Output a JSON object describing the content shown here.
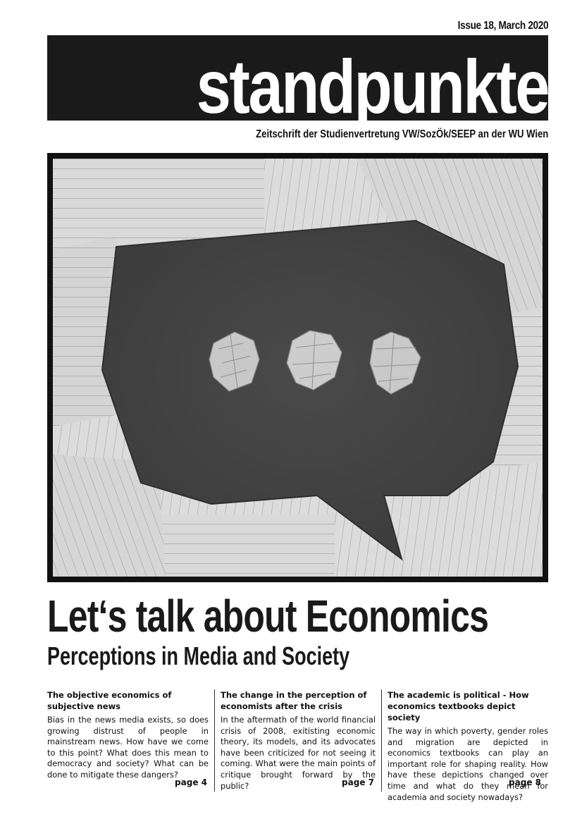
{
  "header": {
    "issue": "Issue 18, March 2020",
    "title": "standpunkte",
    "subtitle": "Zeitschrift der Studienvertretung VW/SozÖk/SEEP an der WU Wien"
  },
  "cover": {
    "description_icon": "speech-bubble-with-crumpled-paper-balls"
  },
  "headline": {
    "title": "Let‘s talk about Economics",
    "subtitle": "Perceptions in Media and Society"
  },
  "articles": [
    {
      "title": "The objective economics of subjective news",
      "teaser": "Bias in the news media exists, so does growing distrust of people in mainstream news. How have we come to this point? What does this mean to democracy and society? What can be done to mitigate these dangers?",
      "page": "page 4"
    },
    {
      "title": "The change in the perception of economists after the crisis",
      "teaser": "In the aftermath of the world financial crisis of 2008, exitisting economic theory, its models, and its advocates have been criticized for not seeing it coming. What were the main points of critique brought forward by the public?",
      "page": "page 7"
    },
    {
      "title": "The academic is political - How economics textbooks depict society",
      "teaser": "The way in which poverty, gender roles and migration are depicted in economics textbooks can play an important role for shaping reality. How have these depictions changed over time and what do they mean for academia and society nowadays?",
      "page": "page 8"
    }
  ]
}
